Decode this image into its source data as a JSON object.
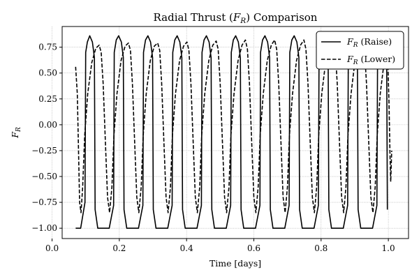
{
  "chart_data": {
    "type": "line",
    "title": {
      "pre": "Radial Thrust (",
      "sym": "F",
      "sub": "R",
      "post": ") Comparison"
    },
    "xlabel": "Time [days]",
    "ylabel": {
      "sym": "F",
      "sub": "R"
    },
    "xlim": [
      0.03,
      1.06
    ],
    "ylim": [
      -1.1,
      0.95
    ],
    "xticks": [
      0.0,
      0.2,
      0.4,
      0.6,
      0.8,
      1.0
    ],
    "xtick_labels": [
      "0.0",
      "0.2",
      "0.4",
      "0.6",
      "0.8",
      "1.0"
    ],
    "yticks": [
      -1.0,
      -0.75,
      -0.5,
      -0.25,
      0.0,
      0.25,
      0.5,
      0.75
    ],
    "ytick_labels": [
      "−1.00",
      "−0.75",
      "−0.50",
      "−0.25",
      "0.00",
      "0.25",
      "0.50",
      "0.75"
    ],
    "grid": true,
    "legend_position": "top-right",
    "series": [
      {
        "name": {
          "sym": "F",
          "sub": "R",
          "text": " (Raise)"
        },
        "style": "solid",
        "color": "#000000",
        "points": [
          [
            0.07,
            -1.0
          ],
          [
            0.085,
            -1.0
          ],
          [
            0.098,
            -0.75
          ],
          [
            0.1,
            0.7
          ],
          [
            0.105,
            0.8
          ],
          [
            0.112,
            0.86
          ],
          [
            0.12,
            0.8
          ],
          [
            0.126,
            0.65
          ],
          [
            0.128,
            -0.82
          ],
          [
            0.136,
            -1.0
          ],
          [
            0.17,
            -1.0
          ],
          [
            0.183,
            -0.78
          ],
          [
            0.185,
            0.7
          ],
          [
            0.191,
            0.82
          ],
          [
            0.198,
            0.86
          ],
          [
            0.206,
            0.8
          ],
          [
            0.212,
            0.65
          ],
          [
            0.214,
            -0.82
          ],
          [
            0.222,
            -1.0
          ],
          [
            0.257,
            -1.0
          ],
          [
            0.27,
            -0.78
          ],
          [
            0.272,
            0.7
          ],
          [
            0.278,
            0.82
          ],
          [
            0.285,
            0.86
          ],
          [
            0.293,
            0.8
          ],
          [
            0.299,
            0.65
          ],
          [
            0.301,
            -0.82
          ],
          [
            0.309,
            -1.0
          ],
          [
            0.344,
            -1.0
          ],
          [
            0.357,
            -0.78
          ],
          [
            0.359,
            0.7
          ],
          [
            0.365,
            0.82
          ],
          [
            0.372,
            0.86
          ],
          [
            0.38,
            0.8
          ],
          [
            0.386,
            0.65
          ],
          [
            0.388,
            -0.82
          ],
          [
            0.396,
            -1.0
          ],
          [
            0.431,
            -1.0
          ],
          [
            0.444,
            -0.78
          ],
          [
            0.446,
            0.7
          ],
          [
            0.452,
            0.82
          ],
          [
            0.459,
            0.86
          ],
          [
            0.467,
            0.8
          ],
          [
            0.473,
            0.65
          ],
          [
            0.475,
            -0.82
          ],
          [
            0.483,
            -1.0
          ],
          [
            0.518,
            -1.0
          ],
          [
            0.531,
            -0.78
          ],
          [
            0.533,
            0.7
          ],
          [
            0.539,
            0.82
          ],
          [
            0.546,
            0.86
          ],
          [
            0.554,
            0.8
          ],
          [
            0.56,
            0.65
          ],
          [
            0.562,
            -0.82
          ],
          [
            0.57,
            -1.0
          ],
          [
            0.605,
            -1.0
          ],
          [
            0.618,
            -0.78
          ],
          [
            0.62,
            0.7
          ],
          [
            0.626,
            0.82
          ],
          [
            0.633,
            0.86
          ],
          [
            0.641,
            0.8
          ],
          [
            0.647,
            0.65
          ],
          [
            0.649,
            -0.82
          ],
          [
            0.657,
            -1.0
          ],
          [
            0.692,
            -1.0
          ],
          [
            0.705,
            -0.78
          ],
          [
            0.707,
            0.7
          ],
          [
            0.713,
            0.82
          ],
          [
            0.72,
            0.86
          ],
          [
            0.728,
            0.8
          ],
          [
            0.734,
            0.65
          ],
          [
            0.736,
            -0.82
          ],
          [
            0.744,
            -1.0
          ],
          [
            0.779,
            -1.0
          ],
          [
            0.792,
            -0.78
          ],
          [
            0.794,
            0.7
          ],
          [
            0.8,
            0.82
          ],
          [
            0.807,
            0.86
          ],
          [
            0.815,
            0.8
          ],
          [
            0.821,
            0.65
          ],
          [
            0.823,
            -0.82
          ],
          [
            0.831,
            -1.0
          ],
          [
            0.866,
            -1.0
          ],
          [
            0.879,
            -0.78
          ],
          [
            0.881,
            0.7
          ],
          [
            0.887,
            0.82
          ],
          [
            0.894,
            0.86
          ],
          [
            0.902,
            0.8
          ],
          [
            0.908,
            0.65
          ],
          [
            0.91,
            -0.82
          ],
          [
            0.918,
            -1.0
          ],
          [
            0.953,
            -1.0
          ],
          [
            0.966,
            -0.78
          ],
          [
            0.968,
            0.7
          ],
          [
            0.974,
            0.82
          ],
          [
            0.981,
            0.86
          ],
          [
            0.989,
            0.8
          ],
          [
            0.995,
            0.65
          ],
          [
            0.997,
            -0.82
          ]
        ]
      },
      {
        "name": {
          "sym": "F",
          "sub": "R",
          "text": " (Lower)"
        },
        "style": "dashed",
        "color": "#000000",
        "points": [
          [
            0.07,
            0.56
          ],
          [
            0.075,
            0.3
          ],
          [
            0.079,
            -0.3
          ],
          [
            0.082,
            -0.75
          ],
          [
            0.086,
            -0.85
          ],
          [
            0.091,
            -0.6
          ],
          [
            0.097,
            -0.1
          ],
          [
            0.106,
            0.3
          ],
          [
            0.118,
            0.6
          ],
          [
            0.13,
            0.74
          ],
          [
            0.14,
            0.77
          ],
          [
            0.146,
            0.7
          ],
          [
            0.152,
            0.4
          ],
          [
            0.159,
            -0.2
          ],
          [
            0.165,
            -0.7
          ],
          [
            0.171,
            -0.85
          ],
          [
            0.178,
            -0.6
          ],
          [
            0.184,
            -0.1
          ],
          [
            0.193,
            0.3
          ],
          [
            0.205,
            0.62
          ],
          [
            0.217,
            0.76
          ],
          [
            0.227,
            0.79
          ],
          [
            0.233,
            0.72
          ],
          [
            0.239,
            0.4
          ],
          [
            0.246,
            -0.2
          ],
          [
            0.252,
            -0.7
          ],
          [
            0.258,
            -0.85
          ],
          [
            0.265,
            -0.6
          ],
          [
            0.271,
            -0.1
          ],
          [
            0.28,
            0.3
          ],
          [
            0.292,
            0.62
          ],
          [
            0.304,
            0.76
          ],
          [
            0.314,
            0.79
          ],
          [
            0.32,
            0.72
          ],
          [
            0.326,
            0.4
          ],
          [
            0.333,
            -0.2
          ],
          [
            0.339,
            -0.7
          ],
          [
            0.345,
            -0.85
          ],
          [
            0.352,
            -0.6
          ],
          [
            0.358,
            -0.1
          ],
          [
            0.367,
            0.3
          ],
          [
            0.379,
            0.62
          ],
          [
            0.391,
            0.76
          ],
          [
            0.401,
            0.8
          ],
          [
            0.407,
            0.72
          ],
          [
            0.413,
            0.4
          ],
          [
            0.42,
            -0.2
          ],
          [
            0.426,
            -0.7
          ],
          [
            0.432,
            -0.85
          ],
          [
            0.439,
            -0.6
          ],
          [
            0.445,
            -0.1
          ],
          [
            0.454,
            0.3
          ],
          [
            0.466,
            0.62
          ],
          [
            0.478,
            0.77
          ],
          [
            0.488,
            0.81
          ],
          [
            0.494,
            0.73
          ],
          [
            0.5,
            0.4
          ],
          [
            0.507,
            -0.2
          ],
          [
            0.513,
            -0.7
          ],
          [
            0.519,
            -0.85
          ],
          [
            0.526,
            -0.6
          ],
          [
            0.532,
            -0.1
          ],
          [
            0.541,
            0.3
          ],
          [
            0.553,
            0.62
          ],
          [
            0.565,
            0.77
          ],
          [
            0.575,
            0.82
          ],
          [
            0.581,
            0.73
          ],
          [
            0.587,
            0.4
          ],
          [
            0.594,
            -0.2
          ],
          [
            0.6,
            -0.7
          ],
          [
            0.606,
            -0.85
          ],
          [
            0.613,
            -0.6
          ],
          [
            0.619,
            -0.1
          ],
          [
            0.628,
            0.3
          ],
          [
            0.64,
            0.62
          ],
          [
            0.652,
            0.77
          ],
          [
            0.662,
            0.82
          ],
          [
            0.668,
            0.73
          ],
          [
            0.674,
            0.4
          ],
          [
            0.681,
            -0.2
          ],
          [
            0.687,
            -0.7
          ],
          [
            0.693,
            -0.85
          ],
          [
            0.7,
            -0.6
          ],
          [
            0.706,
            -0.1
          ],
          [
            0.715,
            0.3
          ],
          [
            0.727,
            0.62
          ],
          [
            0.739,
            0.77
          ],
          [
            0.749,
            0.82
          ],
          [
            0.755,
            0.73
          ],
          [
            0.761,
            0.4
          ],
          [
            0.768,
            -0.2
          ],
          [
            0.774,
            -0.7
          ],
          [
            0.78,
            -0.85
          ],
          [
            0.787,
            -0.6
          ],
          [
            0.793,
            -0.1
          ],
          [
            0.802,
            0.3
          ],
          [
            0.814,
            0.62
          ],
          [
            0.826,
            0.77
          ],
          [
            0.836,
            0.82
          ],
          [
            0.842,
            0.73
          ],
          [
            0.848,
            0.4
          ],
          [
            0.855,
            -0.2
          ],
          [
            0.861,
            -0.7
          ],
          [
            0.867,
            -0.85
          ],
          [
            0.874,
            -0.6
          ],
          [
            0.88,
            -0.1
          ],
          [
            0.889,
            0.3
          ],
          [
            0.901,
            0.62
          ],
          [
            0.913,
            0.77
          ],
          [
            0.923,
            0.82
          ],
          [
            0.929,
            0.73
          ],
          [
            0.935,
            0.4
          ],
          [
            0.942,
            -0.2
          ],
          [
            0.948,
            -0.7
          ],
          [
            0.954,
            -0.85
          ],
          [
            0.961,
            -0.6
          ],
          [
            0.967,
            -0.1
          ],
          [
            0.976,
            0.3
          ],
          [
            0.988,
            0.62
          ],
          [
            0.996,
            0.72
          ],
          [
            0.999,
            0.55
          ],
          [
            1.002,
            0.2
          ],
          [
            1.005,
            -0.3
          ],
          [
            1.007,
            -0.55
          ],
          [
            1.01,
            -0.25
          ]
        ]
      }
    ]
  }
}
